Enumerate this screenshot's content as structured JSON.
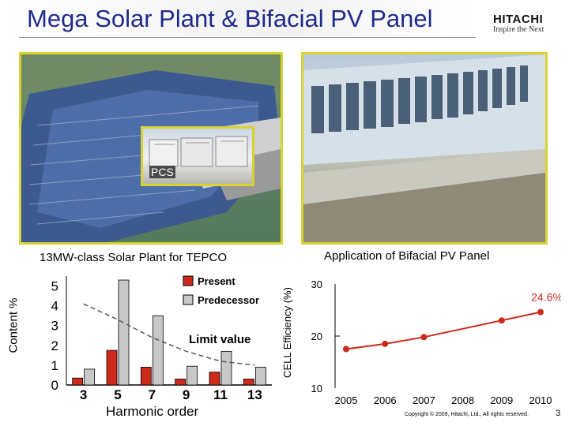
{
  "slide": {
    "title": "Mega Solar Plant & Bifacial PV Panel",
    "logo": {
      "main": "HITACHI",
      "tagline": "Inspire the Next"
    },
    "copyright": "Copyright © 2009, Hitachi, Ltd., All rights reserved.",
    "page_number": "3"
  },
  "photos": {
    "left_caption": "13MW-class Solar Plant for TEPCO",
    "pcs_label": "PCS",
    "right_caption": "Application of Bifacial PV Panel"
  },
  "colors": {
    "title": "#1f2a8a",
    "present": "#cc2a1a",
    "predecessor": "#c8c8c8",
    "efficiency_line": "#cc2a1a",
    "photo_border": "#d8d330"
  },
  "chart_data": [
    {
      "type": "bar",
      "xlabel": "Harmonic order",
      "ylabel": "Content %",
      "categories": [
        "3",
        "5",
        "7",
        "9",
        "11",
        "13"
      ],
      "ylim": [
        0,
        5.5
      ],
      "y_ticks": [
        "0",
        "1",
        "2",
        "3",
        "4",
        "5"
      ],
      "series": [
        {
          "name": "Present",
          "color": "#cc2a1a",
          "values": [
            0.35,
            1.75,
            0.9,
            0.3,
            0.65,
            0.3
          ]
        },
        {
          "name": "Predecessor",
          "color": "#c8c8c8",
          "values": [
            0.8,
            5.3,
            3.5,
            0.95,
            1.7,
            0.9
          ]
        }
      ],
      "limit_line": {
        "label": "Limit value",
        "values": [
          4.1,
          3.3,
          2.4,
          1.7,
          1.2,
          1.0
        ]
      },
      "legend": "top-right"
    },
    {
      "type": "line",
      "ylabel": "CELL Efficiency (%)",
      "x": [
        "2005",
        "2006",
        "2007",
        "2008",
        "2009",
        "2010"
      ],
      "ylim": [
        10,
        30
      ],
      "y_ticks": [
        "10",
        "20",
        "30"
      ],
      "series": [
        {
          "color": "#cc2a1a",
          "values": [
            17.5,
            18.5,
            19.8,
            null,
            23.0,
            24.6
          ]
        }
      ],
      "annotation": "24.6%"
    }
  ]
}
